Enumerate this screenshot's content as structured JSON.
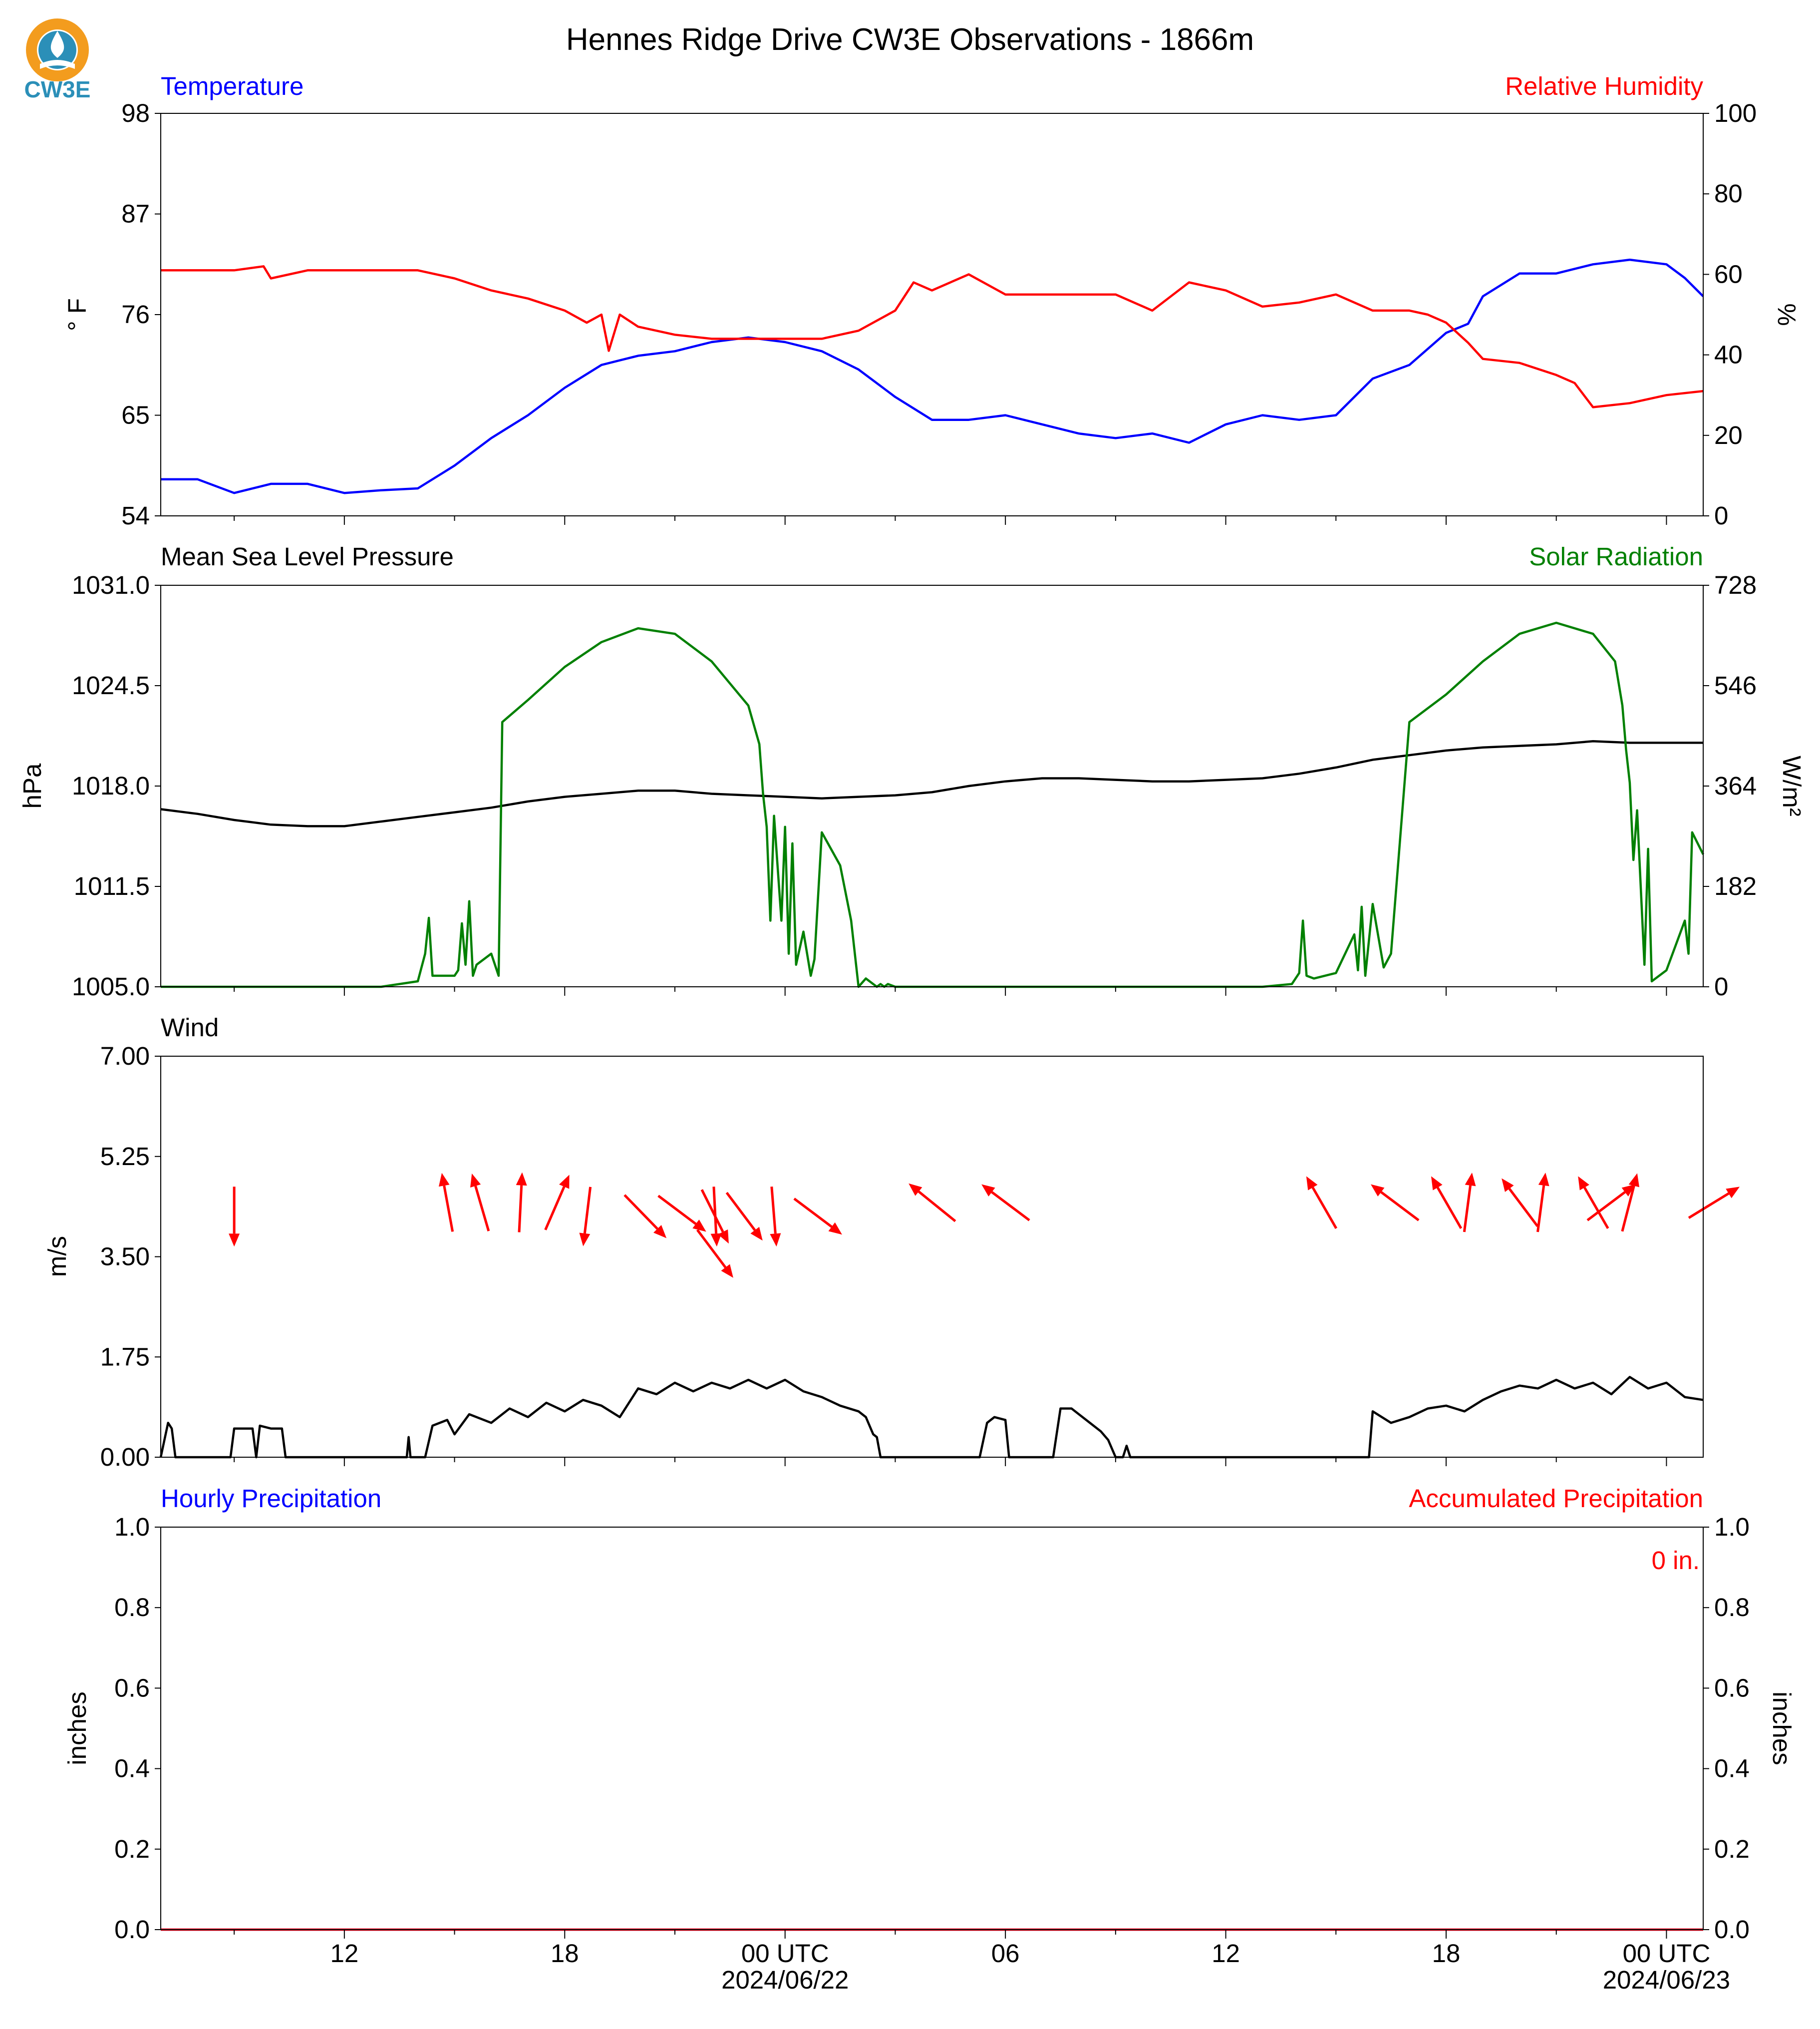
{
  "figure": {
    "title": "Hennes Ridge Drive CW3E Observations - 1866m",
    "logo_text": "CW3E"
  },
  "colors": {
    "temperature": "#0000ff",
    "humidity": "#ff0000",
    "pressure": "#000000",
    "solar": "#008000",
    "wind_speed": "#000000",
    "wind_arrow": "#ff0000",
    "hourly_precip": "#0000ff",
    "accum_precip": "#ff0000",
    "logo_orange": "#f39c1e",
    "logo_teal": "#2b8fb8"
  },
  "time_axis": {
    "start_hour": 7,
    "end_hour": 49,
    "major_tick_hours": [
      12,
      18,
      24,
      30,
      36,
      42,
      48
    ],
    "minor_tick_hours": [
      9,
      15,
      21,
      27,
      33,
      39,
      45
    ],
    "tick_labels": [
      "12",
      "18",
      "00 UTC",
      "06",
      "12",
      "18",
      "00 UTC"
    ],
    "date_labels": [
      {
        "hour": 24,
        "text": "2024/06/22"
      },
      {
        "hour": 48,
        "text": "2024/06/23"
      }
    ]
  },
  "chart_data": [
    {
      "type": "line",
      "panel": "temperature_humidity",
      "left_label": "Temperature",
      "right_label": "Relative Humidity",
      "ylabel_left": "° F",
      "ylabel_right": "%",
      "ylim_left": [
        54,
        98
      ],
      "ylim_right": [
        0,
        100
      ],
      "yticks_left": [
        "54",
        "65",
        "76",
        "87",
        "98"
      ],
      "yticks_right": [
        "0",
        "20",
        "40",
        "60",
        "80",
        "100"
      ],
      "series": [
        {
          "name": "Temperature",
          "axis": "left",
          "x": [
            7,
            8,
            9,
            10,
            11,
            12,
            13,
            14,
            15,
            16,
            17,
            18,
            19,
            19.5,
            20,
            21,
            22,
            23,
            24,
            25,
            26,
            27,
            28,
            29,
            30,
            31,
            32,
            33,
            34,
            35,
            36,
            37,
            38,
            39,
            40,
            41,
            42,
            42.6,
            43,
            44,
            45,
            46,
            47,
            48,
            48.5,
            49
          ],
          "values": [
            58,
            58,
            56.5,
            57.5,
            57.5,
            56.5,
            56.8,
            57,
            59.5,
            62.5,
            65,
            68,
            70.5,
            71,
            71.5,
            72,
            73,
            73.5,
            73,
            72,
            70,
            67,
            64.5,
            64.5,
            65,
            64,
            63,
            62.5,
            63,
            62,
            64,
            65,
            64.5,
            65,
            69,
            70.5,
            74,
            75,
            78,
            80.5,
            80.5,
            81.5,
            82,
            81.5,
            80,
            78
          ]
        },
        {
          "name": "Relative Humidity",
          "axis": "right",
          "x": [
            7,
            8,
            9,
            9.8,
            10,
            11,
            12,
            13,
            14,
            15,
            16,
            17,
            18,
            18.6,
            19,
            19.2,
            19.5,
            20,
            21,
            22,
            23,
            24,
            25,
            26,
            27,
            27.5,
            28,
            29,
            30,
            31,
            32,
            33,
            33.5,
            34,
            35,
            36,
            37,
            38,
            39,
            40,
            41,
            41.5,
            42,
            42.6,
            43,
            44,
            45,
            45.5,
            46,
            47,
            48,
            49
          ],
          "values": [
            61,
            61,
            61,
            62,
            59,
            61,
            61,
            61,
            61,
            59,
            56,
            54,
            51,
            48,
            50,
            41,
            50,
            47,
            45,
            44,
            44,
            44,
            44,
            46,
            51,
            58,
            56,
            60,
            55,
            55,
            55,
            55,
            53,
            51,
            58,
            56,
            52,
            53,
            55,
            51,
            51,
            50,
            48,
            43,
            39,
            38,
            35,
            33,
            27,
            28,
            30,
            31
          ]
        }
      ]
    },
    {
      "type": "line",
      "panel": "pressure_solar",
      "left_label": "Mean Sea Level Pressure",
      "right_label": "Solar Radiation",
      "ylabel_left": "hPa",
      "ylabel_right": "W/m²",
      "ylim_left": [
        1005.0,
        1031.0
      ],
      "ylim_right": [
        0,
        728
      ],
      "yticks_left": [
        "1005.0",
        "1011.5",
        "1018.0",
        "1024.5",
        "1031.0"
      ],
      "yticks_right": [
        "0",
        "182",
        "364",
        "546",
        "728"
      ],
      "series": [
        {
          "name": "Mean Sea Level Pressure",
          "axis": "left",
          "x": [
            7,
            8,
            9,
            10,
            11,
            12,
            13,
            14,
            15,
            16,
            17,
            18,
            19,
            20,
            21,
            22,
            23,
            24,
            25,
            26,
            27,
            28,
            29,
            30,
            31,
            32,
            33,
            34,
            35,
            36,
            37,
            38,
            39,
            40,
            41,
            42,
            43,
            44,
            45,
            46,
            47,
            48,
            49
          ],
          "values": [
            1016.5,
            1016.2,
            1015.8,
            1015.5,
            1015.4,
            1015.4,
            1015.7,
            1016.0,
            1016.3,
            1016.6,
            1017.0,
            1017.3,
            1017.5,
            1017.7,
            1017.7,
            1017.5,
            1017.4,
            1017.3,
            1017.2,
            1017.3,
            1017.4,
            1017.6,
            1018.0,
            1018.3,
            1018.5,
            1018.5,
            1018.4,
            1018.3,
            1018.3,
            1018.4,
            1018.5,
            1018.8,
            1019.2,
            1019.7,
            1020.0,
            1020.3,
            1020.5,
            1020.6,
            1020.7,
            1020.9,
            1020.8,
            1020.8,
            1020.8
          ]
        },
        {
          "name": "Solar Radiation",
          "axis": "right",
          "x": [
            7,
            13,
            14,
            14.2,
            14.3,
            14.4,
            15,
            15.1,
            15.2,
            15.3,
            15.4,
            15.5,
            15.6,
            16,
            16.2,
            16.3,
            17,
            18,
            19,
            20,
            21,
            22,
            23,
            23.3,
            23.4,
            23.5,
            23.6,
            23.7,
            23.9,
            24,
            24.1,
            24.2,
            24.3,
            24.5,
            24.7,
            24.8,
            25,
            25.5,
            25.8,
            26,
            26.2,
            26.5,
            26.6,
            26.7,
            26.8,
            27,
            37,
            37.8,
            38,
            38.1,
            38.2,
            38.4,
            39,
            39.5,
            39.6,
            39.7,
            39.8,
            40,
            40.3,
            40.5,
            41,
            42,
            43,
            44,
            45,
            46,
            46.6,
            46.8,
            46.9,
            47,
            47.1,
            47.2,
            47.4,
            47.5,
            47.6,
            48,
            48.5,
            48.6,
            48.7,
            49
          ],
          "values": [
            0,
            0,
            10,
            60,
            125,
            20,
            20,
            30,
            115,
            40,
            155,
            20,
            40,
            60,
            20,
            480,
            520,
            580,
            625,
            650,
            640,
            590,
            510,
            440,
            350,
            290,
            120,
            310,
            120,
            290,
            60,
            260,
            40,
            100,
            20,
            50,
            280,
            220,
            120,
            0,
            15,
            0,
            5,
            0,
            5,
            0,
            0,
            5,
            25,
            120,
            20,
            15,
            25,
            95,
            30,
            145,
            20,
            150,
            35,
            60,
            480,
            530,
            590,
            640,
            660,
            640,
            590,
            510,
            430,
            370,
            230,
            320,
            40,
            250,
            10,
            30,
            120,
            60,
            280,
            240
          ]
        }
      ]
    },
    {
      "type": "line",
      "panel": "wind",
      "left_label": "Wind",
      "ylabel_left": "m/s",
      "ylim_left": [
        0.0,
        7.0
      ],
      "yticks_left": [
        "0.00",
        "1.75",
        "3.50",
        "5.25",
        "7.00"
      ],
      "series": [
        {
          "name": "Wind",
          "axis": "left",
          "x": [
            7,
            7.2,
            7.3,
            7.4,
            7.5,
            8.9,
            9,
            9.5,
            9.6,
            9.7,
            10,
            10.3,
            10.4,
            13.7,
            13.75,
            13.8,
            14,
            14.2,
            14.4,
            14.8,
            15,
            15.4,
            16,
            16.5,
            17,
            17.5,
            18,
            18.5,
            19,
            19.5,
            20,
            20.5,
            21,
            21.5,
            22,
            22.5,
            23,
            23.5,
            24,
            24.5,
            25,
            25.5,
            26,
            26.2,
            26.4,
            26.5,
            26.6,
            29.3,
            29.5,
            29.7,
            30,
            30.1,
            30.2,
            30.5,
            31.3,
            31.5,
            31.8,
            32,
            32.3,
            32.6,
            32.8,
            33,
            33.2,
            33.3,
            33.4,
            39.9,
            40,
            40.5,
            41,
            41.5,
            42,
            42.5,
            43,
            43.5,
            44,
            44.5,
            45,
            45.5,
            46,
            46.5,
            47,
            47.5,
            48,
            48.5,
            49
          ],
          "values": [
            0,
            0.6,
            0.5,
            0,
            0,
            0,
            0.5,
            0.5,
            0,
            0.55,
            0.5,
            0.5,
            0,
            0,
            0.35,
            0,
            0,
            0,
            0.55,
            0.65,
            0.4,
            0.75,
            0.6,
            0.85,
            0.7,
            0.95,
            0.8,
            1.0,
            0.9,
            0.7,
            1.2,
            1.1,
            1.3,
            1.15,
            1.3,
            1.2,
            1.35,
            1.2,
            1.35,
            1.15,
            1.05,
            0.9,
            0.8,
            0.7,
            0.4,
            0.35,
            0,
            0,
            0.6,
            0.7,
            0.65,
            0,
            0,
            0,
            0,
            0.85,
            0.85,
            0.75,
            0.6,
            0.45,
            0.3,
            0,
            0,
            0.2,
            0,
            0,
            0.8,
            0.6,
            0.7,
            0.85,
            0.9,
            0.8,
            1.0,
            1.15,
            1.25,
            1.2,
            1.35,
            1.2,
            1.3,
            1.1,
            1.4,
            1.2,
            1.3,
            1.05,
            1.0
          ]
        }
      ],
      "wind_arrows": [
        {
          "hour": 9.0,
          "u": 0.0,
          "v": -1.0,
          "y": 4.2
        },
        {
          "hour": 14.8,
          "u": -0.18,
          "v": 0.98,
          "y": 4.45
        },
        {
          "hour": 15.7,
          "u": -0.28,
          "v": 0.96,
          "y": 4.45
        },
        {
          "hour": 16.8,
          "u": 0.05,
          "v": 1.0,
          "y": 4.45
        },
        {
          "hour": 17.8,
          "u": 0.4,
          "v": 0.92,
          "y": 4.45
        },
        {
          "hour": 18.6,
          "u": -0.12,
          "v": -0.99,
          "y": 4.2
        },
        {
          "hour": 20.2,
          "u": 0.7,
          "v": -0.72,
          "y": 4.2
        },
        {
          "hour": 21.2,
          "u": 0.8,
          "v": -0.6,
          "y": 4.25
        },
        {
          "hour": 22.1,
          "u": 0.45,
          "v": -0.9,
          "y": 4.2
        },
        {
          "hour": 22.1,
          "u": 0.6,
          "v": -0.8,
          "y": 3.55
        },
        {
          "hour": 22.1,
          "u": 0.05,
          "v": -1.0,
          "y": 4.2
        },
        {
          "hour": 22.9,
          "u": 0.6,
          "v": -0.8,
          "y": 4.2
        },
        {
          "hour": 23.7,
          "u": 0.08,
          "v": -1.0,
          "y": 4.2
        },
        {
          "hour": 24.9,
          "u": 0.8,
          "v": -0.6,
          "y": 4.2
        },
        {
          "hour": 28.0,
          "u": -0.78,
          "v": 0.63,
          "y": 4.45
        },
        {
          "hour": 30.0,
          "u": -0.8,
          "v": 0.6,
          "y": 4.45
        },
        {
          "hour": 38.6,
          "u": -0.5,
          "v": 0.87,
          "y": 4.45
        },
        {
          "hour": 40.6,
          "u": -0.8,
          "v": 0.6,
          "y": 4.45
        },
        {
          "hour": 42.0,
          "u": -0.5,
          "v": 0.87,
          "y": 4.45
        },
        {
          "hour": 42.6,
          "u": 0.13,
          "v": 0.99,
          "y": 4.45
        },
        {
          "hour": 44.0,
          "u": -0.6,
          "v": 0.8,
          "y": 4.45
        },
        {
          "hour": 44.6,
          "u": 0.13,
          "v": 0.99,
          "y": 4.45
        },
        {
          "hour": 46.0,
          "u": -0.5,
          "v": 0.87,
          "y": 4.45
        },
        {
          "hour": 46.5,
          "u": 0.8,
          "v": 0.6,
          "y": 4.45
        },
        {
          "hour": 47.0,
          "u": 0.25,
          "v": 0.97,
          "y": 4.45
        },
        {
          "hour": 49.3,
          "u": 0.85,
          "v": 0.52,
          "y": 4.45
        }
      ]
    },
    {
      "type": "line",
      "panel": "precipitation",
      "left_label": "Hourly Precipitation",
      "right_label": "Accumulated Precipitation",
      "ylabel_left": "inches",
      "ylabel_right": "inches",
      "ylim_left": [
        0.0,
        1.0
      ],
      "ylim_right": [
        0.0,
        1.0
      ],
      "yticks_left": [
        "0.0",
        "0.2",
        "0.4",
        "0.6",
        "0.8",
        "1.0"
      ],
      "yticks_right": [
        "0.0",
        "0.2",
        "0.4",
        "0.6",
        "0.8",
        "1.0"
      ],
      "total_label": "0 in.",
      "series": [
        {
          "name": "Hourly Precipitation",
          "axis": "left",
          "x": [
            7,
            49
          ],
          "values": [
            0,
            0
          ]
        },
        {
          "name": "Accumulated Precipitation",
          "axis": "right",
          "x": [
            7,
            49
          ],
          "values": [
            0,
            0
          ]
        }
      ]
    }
  ]
}
